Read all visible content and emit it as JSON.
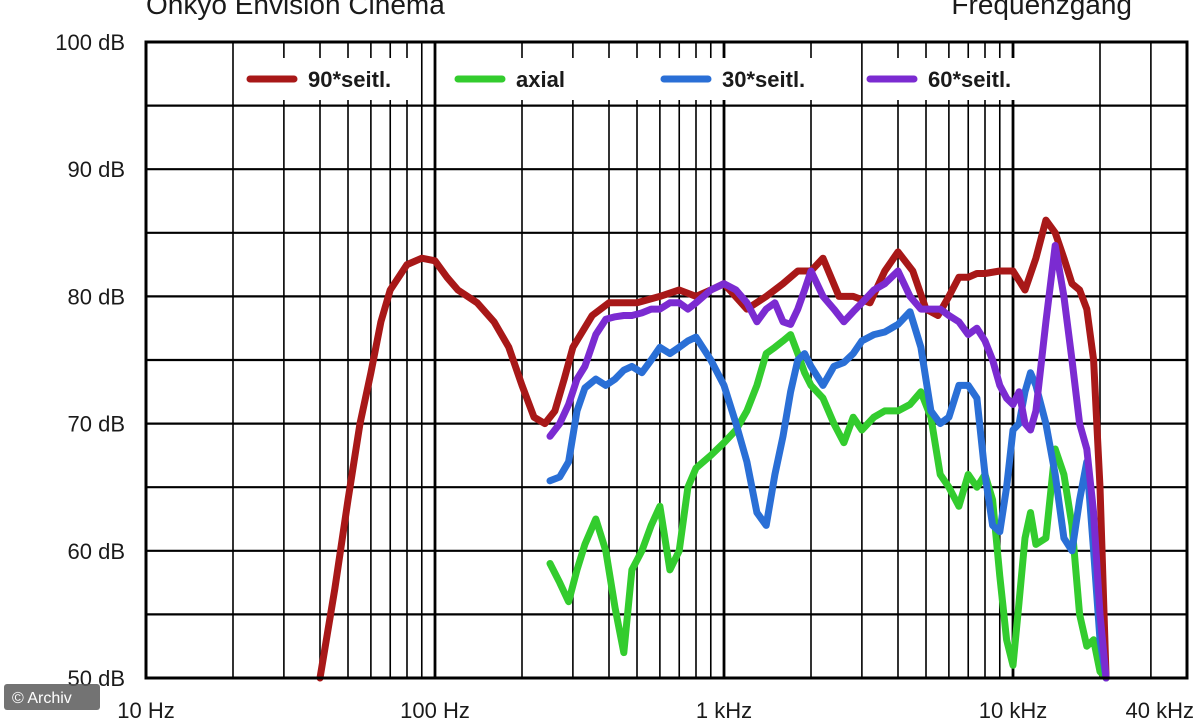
{
  "chart_data": {
    "type": "line",
    "title": "Onkyo Envision Cinema",
    "subtitle": "Frequenzgang",
    "xscale": "log",
    "xlim": [
      10,
      40000
    ],
    "ylim": [
      50,
      100
    ],
    "grid": true,
    "legend_position": "top",
    "x_ticks": [
      {
        "value": 10,
        "label": "10 Hz"
      },
      {
        "value": 100,
        "label": "100 Hz"
      },
      {
        "value": 1000,
        "label": "1 kHz"
      },
      {
        "value": 10000,
        "label": "10 kHz"
      },
      {
        "value": 40000,
        "label": "40 kHz"
      }
    ],
    "y_ticks": [
      {
        "value": 100,
        "label": "100 dB"
      },
      {
        "value": 90,
        "label": "90 dB"
      },
      {
        "value": 80,
        "label": "80 dB"
      },
      {
        "value": 70,
        "label": "70 dB"
      },
      {
        "value": 60,
        "label": "60 dB"
      },
      {
        "value": 50,
        "label": "50 dB"
      }
    ],
    "series": [
      {
        "name": "90*seitl.",
        "color": "#a81818",
        "x": [
          40,
          45,
          50,
          55,
          60,
          65,
          70,
          80,
          90,
          100,
          110,
          120,
          140,
          160,
          180,
          200,
          220,
          240,
          260,
          280,
          300,
          350,
          400,
          450,
          500,
          600,
          700,
          800,
          900,
          1000,
          1200,
          1400,
          1600,
          1800,
          2000,
          2200,
          2500,
          2800,
          3200,
          3600,
          4000,
          4500,
          5000,
          5500,
          6000,
          6500,
          7000,
          7500,
          8000,
          9000,
          10000,
          11000,
          12000,
          13000,
          14000,
          15000,
          16000,
          17000,
          18000,
          19000,
          20000,
          21000
        ],
        "values": [
          50,
          57,
          64,
          70,
          74,
          78,
          80.5,
          82.5,
          83,
          82.8,
          81.5,
          80.5,
          79.5,
          78,
          76,
          73,
          70.5,
          70,
          71,
          73.5,
          76,
          78.5,
          79.5,
          79.5,
          79.5,
          80,
          80.5,
          80,
          80.5,
          81,
          79,
          80,
          81,
          82,
          82,
          83,
          80,
          80,
          79.5,
          82,
          83.5,
          82,
          79,
          78.5,
          80,
          81.5,
          81.5,
          81.8,
          81.8,
          82,
          82,
          80.5,
          83,
          86,
          85,
          83,
          81,
          80.5,
          79,
          75,
          65,
          50
        ]
      },
      {
        "name": "axial",
        "color": "#33cc2e",
        "x": [
          250,
          270,
          290,
          310,
          330,
          360,
          390,
          420,
          450,
          480,
          520,
          560,
          600,
          650,
          700,
          750,
          800,
          900,
          1000,
          1100,
          1200,
          1300,
          1400,
          1500,
          1600,
          1700,
          1800,
          1900,
          2000,
          2200,
          2400,
          2600,
          2800,
          3000,
          3300,
          3600,
          4000,
          4400,
          4800,
          5200,
          5600,
          6000,
          6500,
          7000,
          7500,
          8000,
          8500,
          9000,
          9500,
          10000,
          10500,
          11000,
          11500,
          12000,
          13000,
          14000,
          15000,
          16000,
          17000,
          18000,
          19000,
          20000,
          21000
        ],
        "values": [
          59,
          57.5,
          56,
          58.5,
          60.5,
          62.5,
          60,
          55.5,
          52,
          58.5,
          60,
          62,
          63.5,
          58.5,
          60,
          65,
          66.5,
          67.5,
          68.5,
          69.5,
          71,
          73,
          75.5,
          76,
          76.5,
          77,
          75.5,
          74,
          73,
          72,
          70,
          68.5,
          70.5,
          69.5,
          70.5,
          71,
          71,
          71.5,
          72.5,
          70.5,
          66,
          65,
          63.5,
          66,
          65,
          66,
          64,
          58,
          53,
          51,
          56,
          61,
          63,
          60.5,
          61,
          68,
          66,
          62,
          55,
          52.5,
          53,
          50.5,
          50
        ]
      },
      {
        "name": "30*seitl.",
        "color": "#2a6fd6",
        "x": [
          250,
          270,
          290,
          310,
          330,
          360,
          390,
          420,
          450,
          480,
          520,
          560,
          600,
          650,
          700,
          750,
          800,
          900,
          1000,
          1100,
          1200,
          1300,
          1400,
          1500,
          1600,
          1700,
          1800,
          1900,
          2000,
          2200,
          2400,
          2600,
          2800,
          3000,
          3300,
          3600,
          4000,
          4400,
          4800,
          5200,
          5600,
          6000,
          6500,
          7000,
          7500,
          8000,
          8500,
          9000,
          9500,
          10000,
          10500,
          11000,
          11500,
          12000,
          13000,
          14000,
          15000,
          16000,
          17000,
          18000,
          19000,
          20000,
          21000
        ],
        "values": [
          65.5,
          65.8,
          67,
          71,
          72.8,
          73.5,
          73,
          73.5,
          74.2,
          74.5,
          74,
          75,
          76,
          75.5,
          76,
          76.5,
          76.8,
          75,
          73,
          70,
          67,
          63,
          62,
          66,
          69,
          72.5,
          75,
          75.5,
          74.5,
          73,
          74.5,
          74.8,
          75.5,
          76.5,
          77,
          77.2,
          77.8,
          78.8,
          76,
          71,
          70,
          70.5,
          73,
          73,
          72,
          66,
          62,
          61.5,
          65,
          69.5,
          70,
          72.5,
          74,
          73,
          70,
          66,
          61,
          60,
          64,
          67,
          60,
          53,
          50
        ]
      },
      {
        "name": "60*seitl.",
        "color": "#7b2bd1",
        "x": [
          250,
          270,
          290,
          310,
          330,
          360,
          390,
          420,
          450,
          480,
          520,
          560,
          600,
          650,
          700,
          750,
          800,
          900,
          1000,
          1100,
          1200,
          1300,
          1400,
          1500,
          1600,
          1700,
          1800,
          1900,
          2000,
          2200,
          2400,
          2600,
          2800,
          3000,
          3300,
          3600,
          4000,
          4400,
          4800,
          5200,
          5600,
          6000,
          6500,
          7000,
          7500,
          8000,
          8500,
          9000,
          9500,
          10000,
          10500,
          11000,
          11500,
          12000,
          13000,
          14000,
          15000,
          16000,
          17000,
          18000,
          19000,
          20000,
          21000
        ],
        "values": [
          69,
          70,
          71.5,
          73.5,
          74.5,
          77,
          78.2,
          78.4,
          78.5,
          78.5,
          78.7,
          79,
          79,
          79.5,
          79.5,
          79,
          79.5,
          80.5,
          81,
          80.5,
          79.5,
          78,
          79,
          79.5,
          78,
          77.8,
          79,
          80.5,
          82,
          80,
          79,
          78,
          78.8,
          79.5,
          80.5,
          81,
          82,
          80,
          79,
          79,
          79,
          78.5,
          78,
          77,
          77.5,
          76.5,
          75,
          73,
          72,
          71.5,
          72.5,
          70,
          69.5,
          71,
          78,
          84,
          80,
          75,
          70,
          68,
          63,
          55,
          50
        ]
      }
    ]
  },
  "credit": "© Archiv"
}
